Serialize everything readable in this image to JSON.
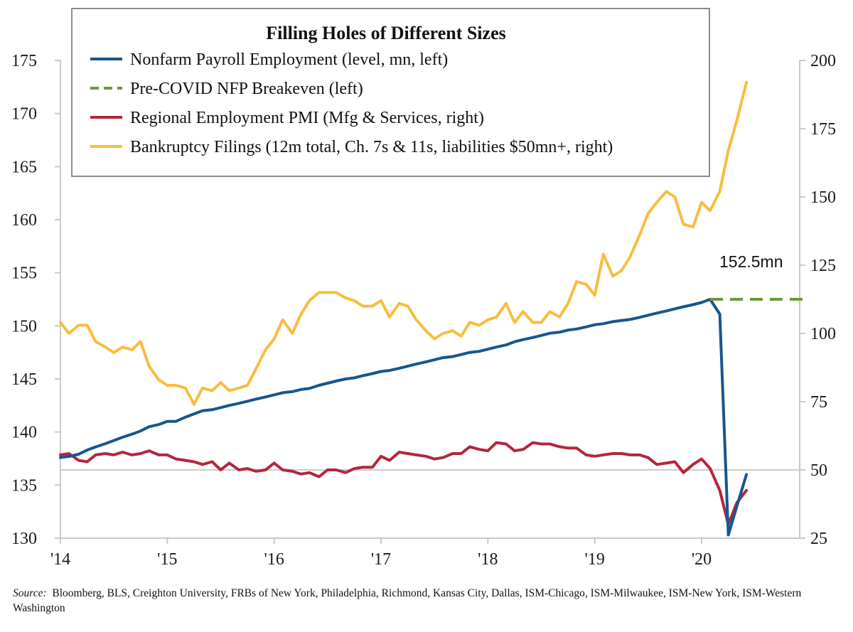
{
  "chart_data": {
    "type": "line",
    "title": "Filling Holes of Different Sizes",
    "x_ticks": [
      "'14",
      "'15",
      "'16",
      "'17",
      "'18",
      "'19",
      "'20"
    ],
    "left_axis": {
      "ylim": [
        130,
        175
      ],
      "ticks": [
        "130",
        "135",
        "140",
        "145",
        "150",
        "155",
        "160",
        "165",
        "170",
        "175"
      ]
    },
    "right_axis": {
      "ylim": [
        25,
        200
      ],
      "ticks": [
        "25",
        "50",
        "75",
        "100",
        "125",
        "150",
        "175",
        "200"
      ]
    },
    "reference_line": {
      "axis": "right",
      "value": 50
    },
    "annotation": "152.5mn",
    "legend_position": "top-left",
    "series": [
      {
        "name": "Nonfarm Payroll Employment (level, mn, left)",
        "axis": "left",
        "color": "#17568c",
        "style": "solid",
        "x": [
          2014.0,
          2014.08,
          2014.17,
          2014.25,
          2014.33,
          2014.42,
          2014.5,
          2014.58,
          2014.67,
          2014.75,
          2014.83,
          2014.92,
          2015.0,
          2015.08,
          2015.17,
          2015.25,
          2015.33,
          2015.42,
          2015.5,
          2015.58,
          2015.67,
          2015.75,
          2015.83,
          2015.92,
          2016.0,
          2016.08,
          2016.17,
          2016.25,
          2016.33,
          2016.42,
          2016.5,
          2016.58,
          2016.67,
          2016.75,
          2016.83,
          2016.92,
          2017.0,
          2017.08,
          2017.17,
          2017.25,
          2017.33,
          2017.42,
          2017.5,
          2017.58,
          2017.67,
          2017.75,
          2017.83,
          2017.92,
          2018.0,
          2018.08,
          2018.17,
          2018.25,
          2018.33,
          2018.42,
          2018.5,
          2018.58,
          2018.67,
          2018.75,
          2018.83,
          2018.92,
          2019.0,
          2019.08,
          2019.17,
          2019.25,
          2019.33,
          2019.42,
          2019.5,
          2019.58,
          2019.67,
          2019.75,
          2019.83,
          2019.92,
          2020.0,
          2020.08,
          2020.17,
          2020.25,
          2020.33,
          2020.42
        ],
        "values": [
          137.6,
          137.7,
          137.9,
          138.3,
          138.6,
          138.9,
          139.2,
          139.5,
          139.8,
          140.1,
          140.5,
          140.7,
          141.0,
          141.0,
          141.4,
          141.7,
          142.0,
          142.1,
          142.3,
          142.5,
          142.7,
          142.9,
          143.1,
          143.3,
          143.5,
          143.7,
          143.8,
          144.0,
          144.1,
          144.4,
          144.6,
          144.8,
          145.0,
          145.1,
          145.3,
          145.5,
          145.7,
          145.8,
          146.0,
          146.2,
          146.4,
          146.6,
          146.8,
          147.0,
          147.1,
          147.3,
          147.5,
          147.6,
          147.8,
          148.0,
          148.2,
          148.5,
          148.7,
          148.9,
          149.1,
          149.3,
          149.4,
          149.6,
          149.7,
          149.9,
          150.1,
          150.2,
          150.4,
          150.5,
          150.6,
          150.8,
          151.0,
          151.2,
          151.4,
          151.6,
          151.8,
          152.0,
          152.2,
          152.5,
          151.1,
          130.3,
          133.0,
          136.0
        ]
      },
      {
        "name": "Pre-COVID NFP Breakeven (left)",
        "axis": "left",
        "color": "#6a9a3a",
        "style": "dashed",
        "x": [
          2020.08,
          2020.98
        ],
        "values": [
          152.5,
          152.5
        ]
      },
      {
        "name": "Regional Employment PMI (Mfg & Services, right)",
        "axis": "right",
        "color": "#b3263c",
        "style": "solid",
        "x": [
          2014.0,
          2014.08,
          2014.17,
          2014.25,
          2014.33,
          2014.42,
          2014.5,
          2014.58,
          2014.67,
          2014.75,
          2014.83,
          2014.92,
          2015.0,
          2015.08,
          2015.17,
          2015.25,
          2015.33,
          2015.42,
          2015.5,
          2015.58,
          2015.67,
          2015.75,
          2015.83,
          2015.92,
          2016.0,
          2016.08,
          2016.17,
          2016.25,
          2016.33,
          2016.42,
          2016.5,
          2016.58,
          2016.67,
          2016.75,
          2016.83,
          2016.92,
          2017.0,
          2017.08,
          2017.17,
          2017.25,
          2017.33,
          2017.42,
          2017.5,
          2017.58,
          2017.67,
          2017.75,
          2017.83,
          2017.92,
          2018.0,
          2018.08,
          2018.17,
          2018.25,
          2018.33,
          2018.42,
          2018.5,
          2018.58,
          2018.67,
          2018.75,
          2018.83,
          2018.92,
          2019.0,
          2019.08,
          2019.17,
          2019.25,
          2019.33,
          2019.42,
          2019.5,
          2019.58,
          2019.67,
          2019.75,
          2019.83,
          2019.92,
          2020.0,
          2020.08,
          2020.17,
          2020.25,
          2020.33,
          2020.42
        ],
        "values": [
          55.5,
          56.0,
          53.5,
          53.0,
          55.5,
          56.0,
          55.5,
          56.5,
          55.5,
          56.0,
          57.0,
          55.5,
          55.5,
          54.0,
          53.5,
          53.0,
          52.0,
          53.0,
          50.0,
          52.5,
          50.0,
          50.5,
          49.5,
          50.0,
          52.5,
          50.0,
          49.5,
          48.5,
          49.0,
          47.5,
          50.0,
          50.0,
          49.0,
          50.5,
          51.0,
          51.0,
          55.0,
          53.5,
          56.5,
          56.0,
          55.5,
          55.0,
          54.0,
          54.5,
          56.0,
          56.0,
          58.5,
          57.5,
          57.0,
          60.0,
          59.5,
          57.0,
          57.5,
          60.0,
          59.5,
          59.5,
          58.5,
          58.0,
          58.0,
          55.5,
          55.0,
          55.5,
          56.0,
          56.0,
          55.5,
          55.5,
          54.5,
          52.0,
          52.5,
          53.0,
          49.0,
          52.0,
          54.0,
          50.5,
          42.5,
          30.0,
          38.0,
          42.5
        ]
      },
      {
        "name": "Bankruptcy Filings (12m total, Ch. 7s & 11s, liabilities $50mn+, right)",
        "axis": "right",
        "color": "#f7bd3e",
        "style": "solid",
        "x": [
          2014.0,
          2014.08,
          2014.17,
          2014.25,
          2014.33,
          2014.42,
          2014.5,
          2014.58,
          2014.67,
          2014.75,
          2014.83,
          2014.92,
          2015.0,
          2015.08,
          2015.17,
          2015.25,
          2015.33,
          2015.42,
          2015.5,
          2015.58,
          2015.67,
          2015.75,
          2015.83,
          2015.92,
          2016.0,
          2016.08,
          2016.17,
          2016.25,
          2016.33,
          2016.42,
          2016.5,
          2016.58,
          2016.67,
          2016.75,
          2016.83,
          2016.92,
          2017.0,
          2017.08,
          2017.17,
          2017.25,
          2017.33,
          2017.42,
          2017.5,
          2017.58,
          2017.67,
          2017.75,
          2017.83,
          2017.92,
          2018.0,
          2018.08,
          2018.17,
          2018.25,
          2018.33,
          2018.42,
          2018.5,
          2018.58,
          2018.67,
          2018.75,
          2018.83,
          2018.92,
          2019.0,
          2019.08,
          2019.17,
          2019.25,
          2019.33,
          2019.42,
          2019.5,
          2019.58,
          2019.67,
          2019.75,
          2019.83,
          2019.92,
          2020.0,
          2020.08,
          2020.17,
          2020.25,
          2020.33,
          2020.42
        ],
        "values": [
          104,
          100,
          103,
          103,
          97,
          95,
          93,
          95,
          94,
          97,
          88,
          83,
          81,
          81,
          80,
          74,
          80,
          79,
          82,
          79,
          80,
          81,
          87,
          94,
          98,
          105,
          100,
          107,
          112,
          115,
          115,
          115,
          113,
          112,
          110,
          110,
          112,
          106,
          111,
          110,
          105,
          101,
          98,
          100,
          101,
          99,
          104,
          103,
          105,
          106,
          111,
          104,
          108,
          104,
          104,
          108,
          106,
          111,
          119,
          118,
          114,
          129,
          121,
          123,
          128,
          136,
          144,
          148,
          152,
          150,
          140,
          139,
          148,
          145,
          152,
          167,
          178,
          192
        ]
      }
    ]
  },
  "source": {
    "label": "Source:",
    "text": "Bloomberg, BLS, Creighton University, FRBs of New York, Philadelphia, Richmond, Kansas City, Dallas, ISM-Chicago, ISM-Milwaukee, ISM-New York, ISM-Western Washington"
  }
}
